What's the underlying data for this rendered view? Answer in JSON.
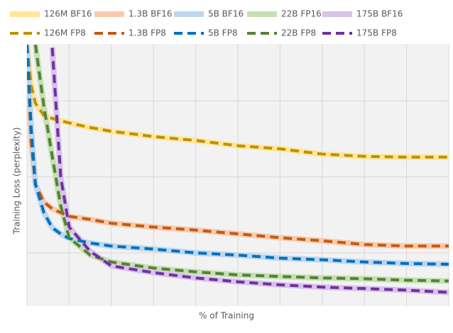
{
  "chart_data": {
    "type": "line",
    "xlabel": "% of Training",
    "ylabel": "Training Loss (perplexity)",
    "x": [
      0,
      1,
      2,
      4,
      6,
      8,
      10,
      15,
      20,
      30,
      40,
      50,
      60,
      70,
      80,
      90,
      100
    ],
    "xlim": [
      0,
      100
    ],
    "xticks": [
      0,
      10,
      20,
      30,
      40,
      50,
      60,
      70,
      80,
      90,
      100
    ],
    "ylim": [
      0.3,
      3.75
    ],
    "yticks": [
      1,
      2,
      3
    ],
    "tick_labels": false,
    "grid": true,
    "legend": "top",
    "series": [
      {
        "name": "126M BF16",
        "color": "#ffe699",
        "line_style": "solid",
        "values": [
          3.74,
          3.2,
          2.97,
          2.81,
          2.77,
          2.74,
          2.71,
          2.65,
          2.6,
          2.53,
          2.48,
          2.41,
          2.37,
          2.3,
          2.27,
          2.26,
          2.26
        ]
      },
      {
        "name": "1.3B BF16",
        "color": "#f8cbad",
        "line_style": "solid",
        "values": [
          3.74,
          2.46,
          1.9,
          1.67,
          1.58,
          1.53,
          1.48,
          1.44,
          1.39,
          1.34,
          1.3,
          1.25,
          1.2,
          1.16,
          1.11,
          1.09,
          1.09
        ]
      },
      {
        "name": "5B BF16",
        "color": "#bdd7ee",
        "line_style": "solid",
        "values": [
          3.74,
          2.65,
          1.9,
          1.53,
          1.33,
          1.25,
          1.19,
          1.13,
          1.09,
          1.05,
          1.0,
          0.97,
          0.93,
          0.91,
          0.88,
          0.86,
          0.85
        ]
      },
      {
        "name": "22B FP16",
        "color": "#c6e0b4",
        "line_style": "solid",
        "values": [
          null,
          null,
          3.74,
          2.93,
          2.27,
          1.62,
          1.2,
          0.97,
          0.88,
          0.8,
          0.75,
          0.71,
          0.69,
          0.67,
          0.66,
          0.64,
          0.63
        ]
      },
      {
        "name": "175B BF16",
        "color": "#d9c3e9",
        "line_style": "solid",
        "values": [
          null,
          null,
          null,
          null,
          3.7,
          2.0,
          1.34,
          1.02,
          0.83,
          0.74,
          0.67,
          0.62,
          0.58,
          0.55,
          0.53,
          0.51,
          0.48
        ]
      },
      {
        "name": "126M FP8",
        "color": "#bf9000",
        "line_style": "dashed",
        "values": [
          3.74,
          3.2,
          2.97,
          2.81,
          2.77,
          2.74,
          2.71,
          2.65,
          2.6,
          2.53,
          2.48,
          2.41,
          2.37,
          2.3,
          2.27,
          2.26,
          2.26
        ]
      },
      {
        "name": "1.3B FP8",
        "color": "#c55a11",
        "line_style": "dashed",
        "values": [
          3.74,
          2.46,
          1.9,
          1.67,
          1.58,
          1.53,
          1.48,
          1.44,
          1.39,
          1.34,
          1.3,
          1.25,
          1.2,
          1.16,
          1.11,
          1.09,
          1.09
        ]
      },
      {
        "name": "5B FP8",
        "color": "#0070c0",
        "line_style": "dashed",
        "values": [
          3.74,
          2.65,
          1.9,
          1.53,
          1.33,
          1.25,
          1.19,
          1.13,
          1.09,
          1.05,
          1.0,
          0.97,
          0.93,
          0.91,
          0.88,
          0.86,
          0.85
        ]
      },
      {
        "name": "22B FP8",
        "color": "#548235",
        "line_style": "dashed",
        "values": [
          null,
          null,
          3.74,
          2.93,
          2.27,
          1.62,
          1.2,
          0.97,
          0.88,
          0.8,
          0.75,
          0.71,
          0.69,
          0.67,
          0.66,
          0.64,
          0.63
        ]
      },
      {
        "name": "175B FP8",
        "color": "#7030a0",
        "line_style": "dashed",
        "values": [
          null,
          null,
          null,
          null,
          3.7,
          2.0,
          1.34,
          1.02,
          0.83,
          0.74,
          0.67,
          0.62,
          0.58,
          0.55,
          0.53,
          0.51,
          0.48
        ]
      }
    ]
  }
}
